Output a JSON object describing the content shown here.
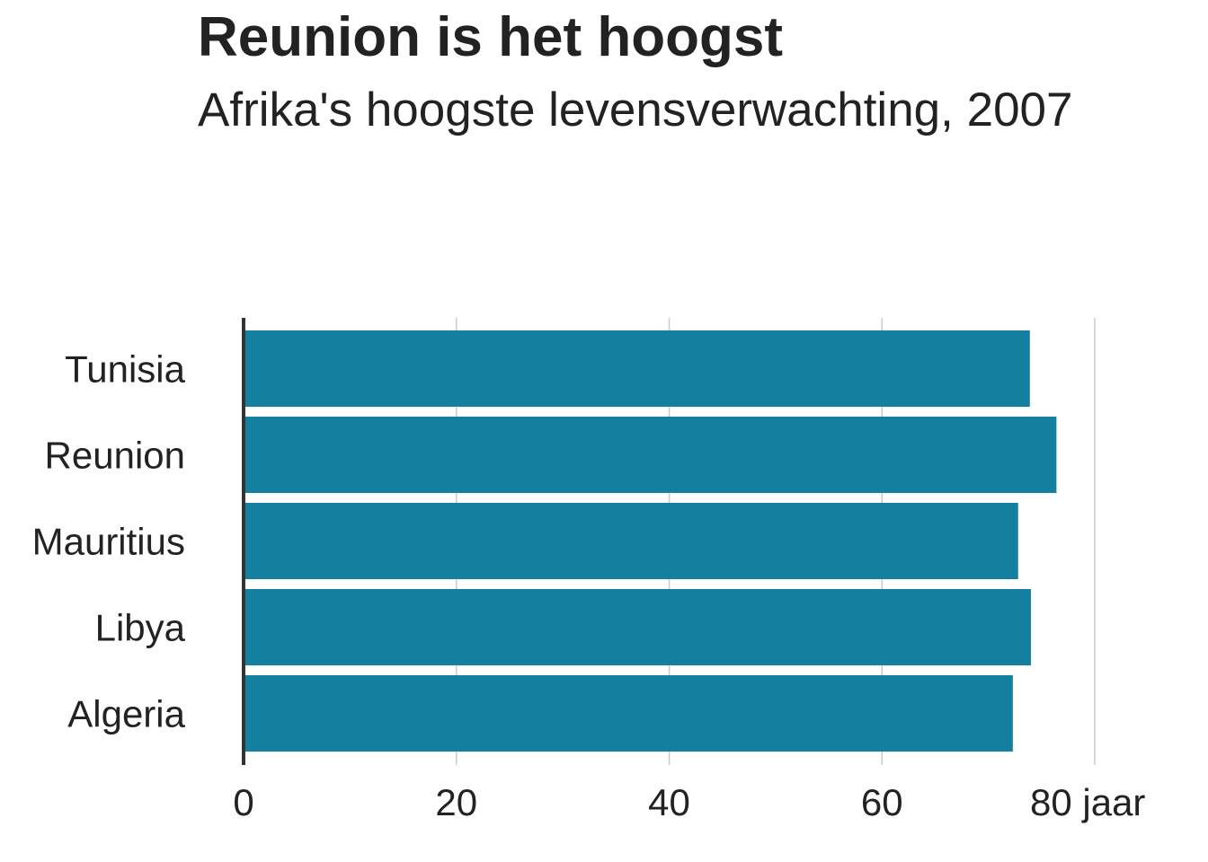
{
  "title": "Reunion is het hoogst",
  "subtitle": "Afrika's hoogste levensverwachting, 2007",
  "colors": {
    "bar": "#1380a1",
    "grid": "#cbcbcb",
    "axis": "#333333",
    "text": "#222222"
  },
  "chart_data": {
    "type": "bar",
    "orientation": "horizontal",
    "title": "Reunion is het hoogst",
    "subtitle": "Afrika's hoogste levensverwachting, 2007",
    "categories": [
      "Tunisia",
      "Reunion",
      "Mauritius",
      "Libya",
      "Algeria"
    ],
    "values": [
      73.9,
      76.4,
      72.8,
      74.0,
      72.3
    ],
    "xlabel": "",
    "ylabel": "",
    "xlim": [
      0,
      80
    ],
    "x_ticks": [
      0,
      20,
      40,
      60,
      80
    ],
    "x_tick_labels": [
      "0",
      "20",
      "40",
      "60",
      "80 jaar"
    ],
    "grid": "vertical",
    "legend": "none"
  }
}
